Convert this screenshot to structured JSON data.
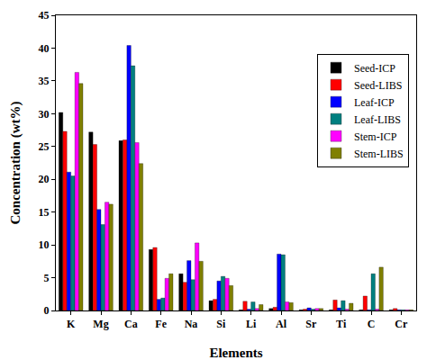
{
  "chart_data": {
    "type": "bar",
    "x_label": "Elements",
    "y_label": "Concentration (wt%)",
    "categories": [
      "K",
      "Mg",
      "Ca",
      "Fe",
      "Na",
      "Si",
      "Li",
      "Al",
      "Sr",
      "Ti",
      "C",
      "Cr"
    ],
    "series": [
      {
        "name": "Seed-ICP",
        "color": "#000000",
        "values": [
          30.2,
          27.2,
          25.9,
          9.3,
          5.6,
          1.5,
          0.1,
          0.3,
          0.1,
          0.1,
          0.1,
          0.1
        ]
      },
      {
        "name": "Seed-LIBS",
        "color": "#ff0000",
        "values": [
          27.3,
          25.3,
          26.0,
          9.6,
          4.3,
          1.7,
          1.4,
          0.5,
          0.2,
          1.6,
          2.2,
          0.3
        ]
      },
      {
        "name": "Leaf-ICP",
        "color": "#0000ff",
        "values": [
          21.1,
          15.4,
          40.4,
          1.7,
          7.6,
          4.5,
          0.2,
          8.6,
          0.4,
          0.4,
          0.1,
          0.1
        ]
      },
      {
        "name": "Leaf-LIBS",
        "color": "#008080",
        "values": [
          20.5,
          13.1,
          37.3,
          1.9,
          4.7,
          5.2,
          1.3,
          8.5,
          0.2,
          1.5,
          5.6,
          0.1
        ]
      },
      {
        "name": "Stem-ICP",
        "color": "#ff00ff",
        "values": [
          36.3,
          16.5,
          25.6,
          4.9,
          10.3,
          4.9,
          0.3,
          1.3,
          0.3,
          0.2,
          0.2,
          0.1
        ]
      },
      {
        "name": "Stem-LIBS",
        "color": "#808000",
        "values": [
          34.6,
          16.2,
          22.4,
          5.6,
          7.5,
          3.8,
          0.9,
          1.2,
          0.3,
          1.1,
          6.6,
          0.1
        ]
      }
    ],
    "ylim": [
      0,
      45
    ],
    "yticks": [
      0,
      5,
      10,
      15,
      20,
      25,
      30,
      35,
      40,
      45
    ],
    "grid": false,
    "legend": "top right"
  }
}
